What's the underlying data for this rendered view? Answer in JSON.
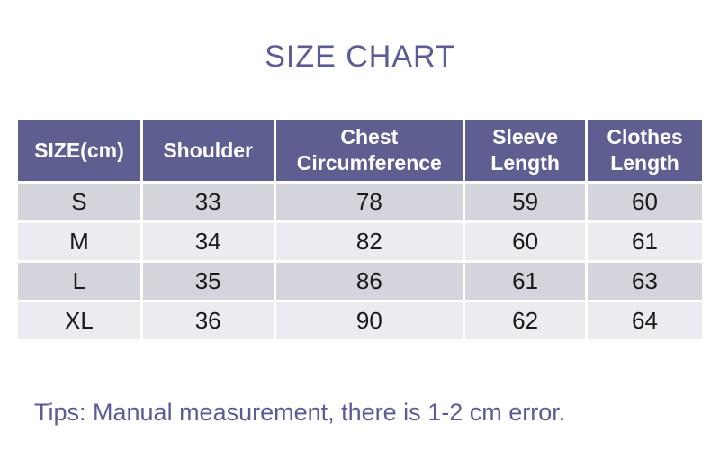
{
  "title": "SIZE CHART",
  "colors": {
    "accent_purple": "#5b5b96",
    "header_bg": "#5e5e90",
    "header_text": "#ffffff",
    "row_odd_bg": "#d4d4dd",
    "row_even_bg": "#ebebf0",
    "cell_text": "#1a1a1a",
    "page_bg": "#ffffff"
  },
  "table": {
    "unit": "cm",
    "columns": [
      "SIZE(cm)",
      "Shoulder",
      "Chest Circumference",
      "Sleeve Length",
      "Clothes Length"
    ],
    "rows": [
      [
        "S",
        "33",
        "78",
        "59",
        "60"
      ],
      [
        "M",
        "34",
        "82",
        "60",
        "61"
      ],
      [
        "L",
        "35",
        "86",
        "61",
        "63"
      ],
      [
        "XL",
        "36",
        "90",
        "62",
        "64"
      ]
    ]
  },
  "tips": "Tips: Manual measurement, there is 1-2 cm error."
}
